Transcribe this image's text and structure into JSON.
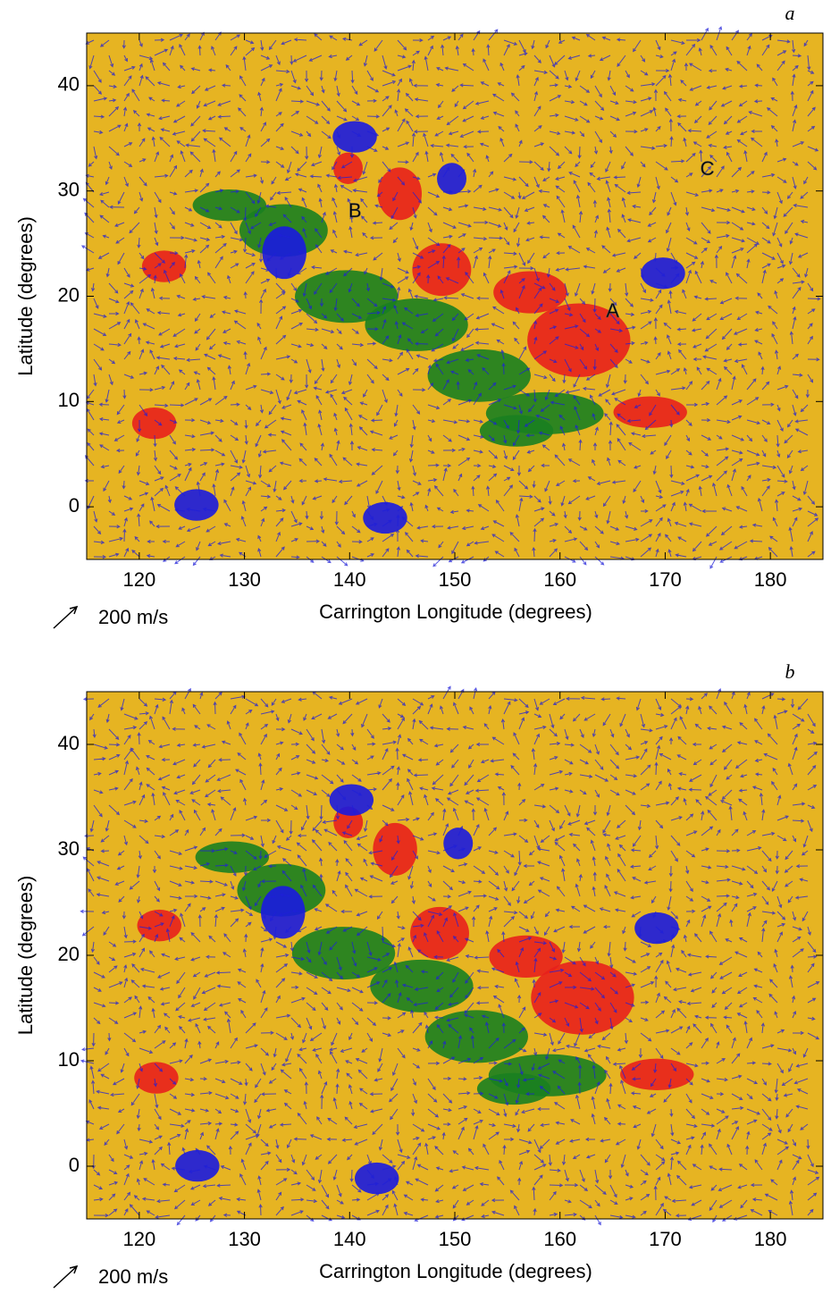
{
  "chart_data": [
    {
      "type": "quiver",
      "title": "a",
      "xlabel": "Carrington Longitude (degrees)",
      "ylabel": "Latitude (degrees)",
      "xlim": [
        115,
        185
      ],
      "ylim": [
        -5,
        45
      ],
      "xticks": [
        120,
        130,
        140,
        150,
        160,
        170,
        180
      ],
      "yticks": [
        0,
        10,
        20,
        30,
        40
      ],
      "scale_label": "200 m/s",
      "annotations": [
        {
          "text": "A",
          "x": 165,
          "y": 18.5
        },
        {
          "text": "B",
          "x": 140.5,
          "y": 28
        },
        {
          "text": "C",
          "x": 174,
          "y": 32
        }
      ]
    },
    {
      "type": "quiver",
      "title": "b",
      "xlabel": "Carrington Longitude (degrees)",
      "ylabel": "Latitude (degrees)",
      "xlim": [
        115,
        185
      ],
      "ylim": [
        -5,
        45
      ],
      "xticks": [
        120,
        130,
        140,
        150,
        160,
        170,
        180
      ],
      "yticks": [
        0,
        10,
        20,
        30,
        40
      ],
      "scale_label": "200 m/s"
    }
  ]
}
